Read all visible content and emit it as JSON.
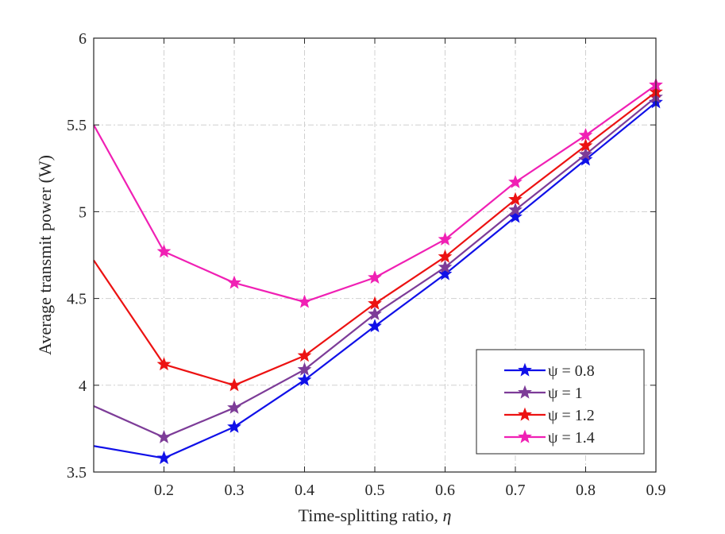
{
  "chart_data": {
    "type": "line",
    "title": "",
    "xlabel": "Time-splitting ratio, ",
    "xlabel_symbol": "η",
    "ylabel": "Average transmit power (W)",
    "xlim": [
      0.1,
      0.9
    ],
    "ylim": [
      3.5,
      6
    ],
    "grid": true,
    "grid_style": "dash-dot",
    "legend_position": "bottom-right",
    "x": [
      0.1,
      0.2,
      0.3,
      0.4,
      0.5,
      0.6,
      0.7,
      0.8,
      0.9
    ],
    "x_ticks": [
      0.2,
      0.3,
      0.4,
      0.5,
      0.6,
      0.7,
      0.8,
      0.9
    ],
    "x_tick_labels": [
      "0.2",
      "0.3",
      "0.4",
      "0.5",
      "0.6",
      "0.7",
      "0.8",
      "0.9"
    ],
    "y_ticks": [
      3.5,
      4,
      4.5,
      5,
      5.5,
      6
    ],
    "y_tick_labels": [
      "3.5",
      "4",
      "4.5",
      "5",
      "5.5",
      "6"
    ],
    "series": [
      {
        "name": "ψ = 0.8",
        "color": "#1010e8",
        "values": [
          3.65,
          3.58,
          3.76,
          4.03,
          4.34,
          4.64,
          4.97,
          5.3,
          5.63
        ]
      },
      {
        "name": "ψ = 1",
        "color": "#7d3c98",
        "values": [
          3.88,
          3.7,
          3.87,
          4.09,
          4.41,
          4.68,
          5.01,
          5.33,
          5.66
        ]
      },
      {
        "name": "ψ = 1.2",
        "color": "#ec1212",
        "values": [
          4.72,
          4.12,
          4.0,
          4.17,
          4.47,
          4.74,
          5.07,
          5.38,
          5.69
        ]
      },
      {
        "name": "ψ = 1.4",
        "color": "#f020b4",
        "values": [
          5.5,
          4.77,
          4.59,
          4.48,
          4.62,
          4.84,
          5.17,
          5.44,
          5.73
        ]
      }
    ]
  }
}
